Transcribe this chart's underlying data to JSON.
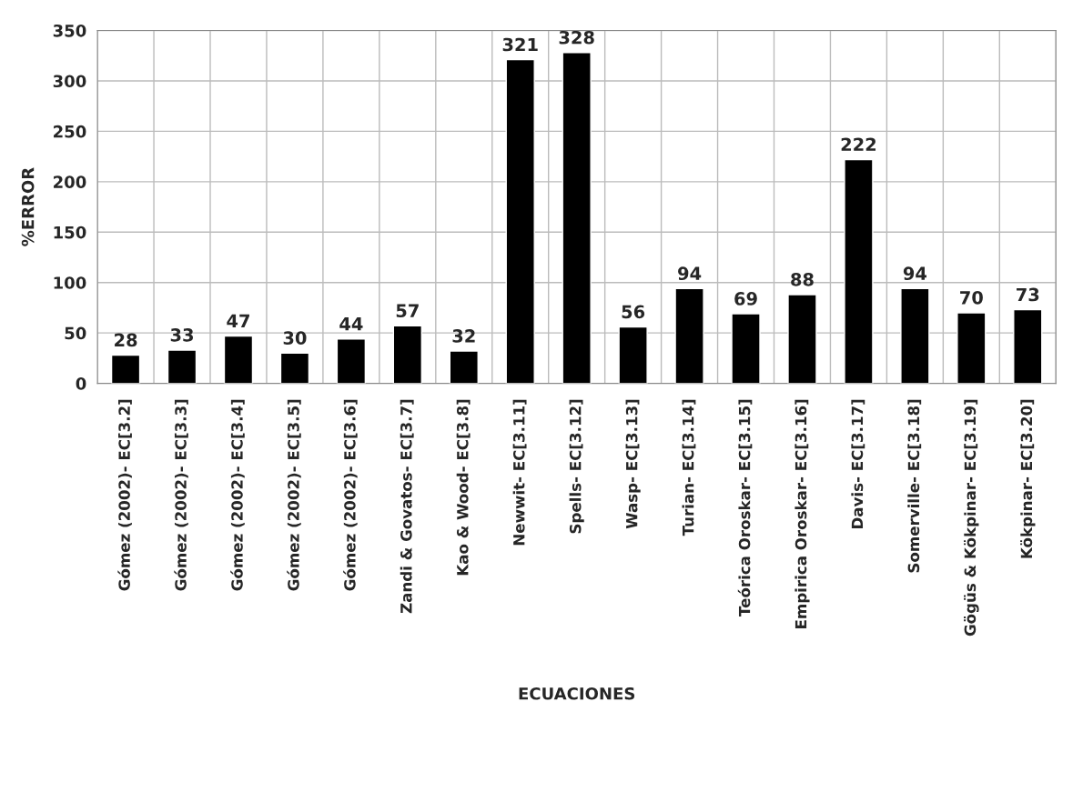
{
  "chart_data": {
    "type": "bar",
    "xlabel": "ECUACIONES",
    "ylabel": "%ERROR",
    "categories": [
      "Gómez (2002)- EC[3.2]",
      "Gómez (2002)- EC[3.3]",
      "Gómez (2002)- EC[3.4]",
      "Gómez (2002)- EC[3.5]",
      "Gómez (2002)- EC[3.6]",
      "Zandi & Govatos- EC[3.7]",
      "Kao & Wood- EC[3.8]",
      "Newwit- EC[3.11]",
      "Spells- EC[3.12]",
      "Wasp- EC[3.13]",
      "Turian- EC[3.14]",
      "Teórica Oroskar- EC[3.15]",
      "Empirica Oroskar- EC[3.16]",
      "Davis- EC[3.17]",
      "Somerville- EC[3.18]",
      "Gögüs & Kökpinar- EC[3.19]",
      "Kökpinar- EC[3.20]"
    ],
    "values": [
      28,
      33,
      47,
      30,
      44,
      57,
      32,
      321,
      328,
      56,
      94,
      69,
      88,
      222,
      94,
      70,
      73
    ],
    "color": "#000000",
    "ylim": [
      0,
      350
    ],
    "yticks": [
      0,
      50,
      100,
      150,
      200,
      250,
      300,
      350
    ],
    "grid": true,
    "data_labels": true
  }
}
